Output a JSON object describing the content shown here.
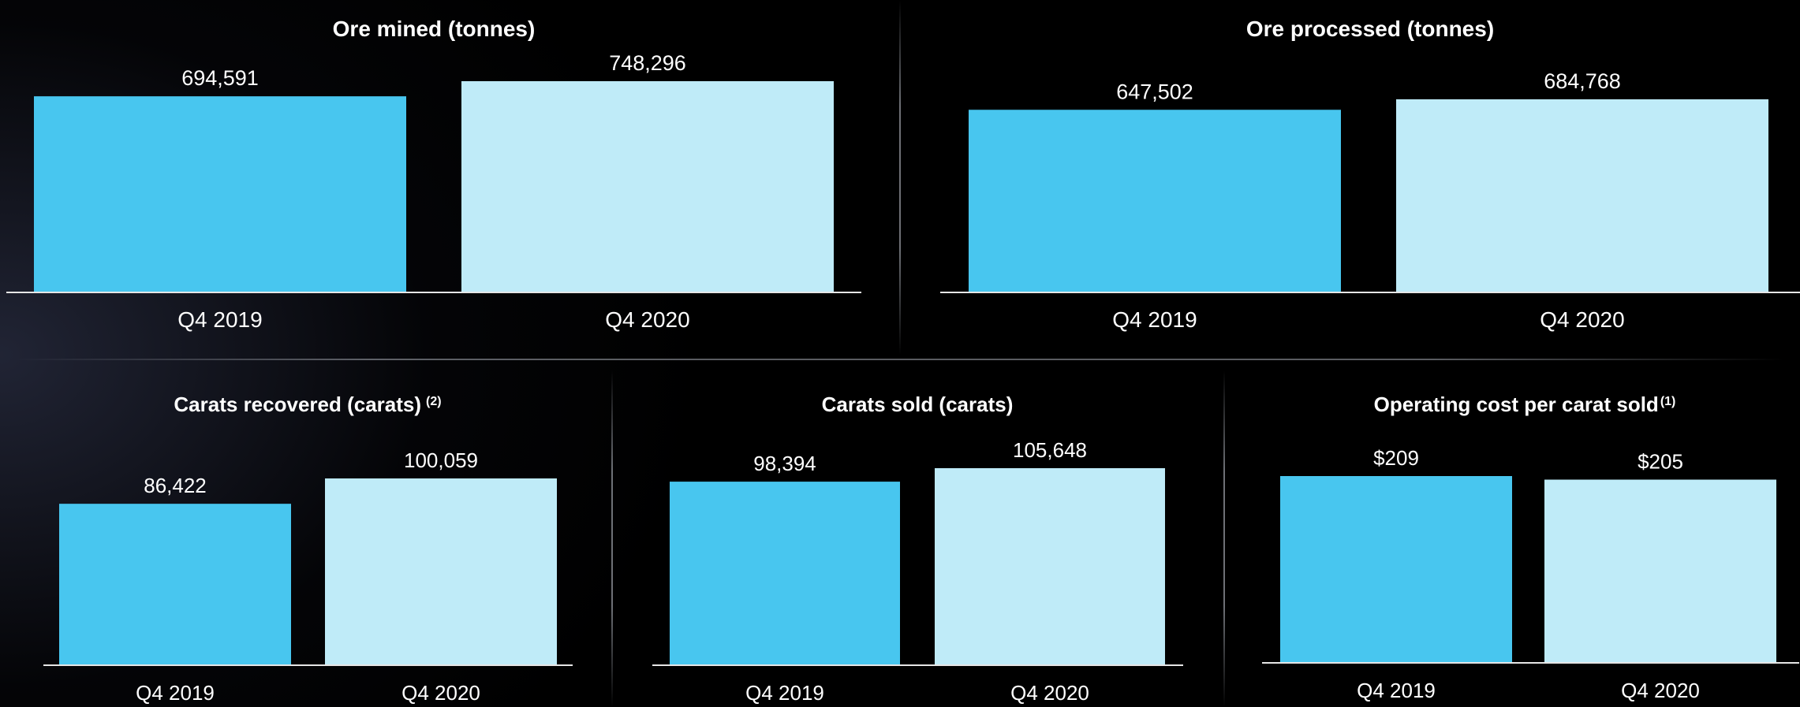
{
  "colors": {
    "q4_2019": "#48C6EF",
    "q4_2020": "#BFEBF8",
    "axis": "#E6E6E6",
    "text": "#FFFFFF"
  },
  "chart_data": [
    {
      "type": "bar",
      "title": "Ore mined (tonnes)",
      "footnote": "",
      "categories": [
        "Q4 2019",
        "Q4 2020"
      ],
      "values": [
        694591,
        748296
      ],
      "value_labels": [
        "694,591",
        "748,296"
      ],
      "ylim": [
        0,
        748296
      ]
    },
    {
      "type": "bar",
      "title": "Ore processed (tonnes)",
      "footnote": "",
      "categories": [
        "Q4 2019",
        "Q4 2020"
      ],
      "values": [
        647502,
        684768
      ],
      "value_labels": [
        "647,502",
        "684,768"
      ],
      "ylim": [
        0,
        684768
      ]
    },
    {
      "type": "bar",
      "title": "Carats recovered (carats)",
      "footnote": "(2)",
      "categories": [
        "Q4 2019",
        "Q4 2020"
      ],
      "values": [
        86422,
        100059
      ],
      "value_labels": [
        "86,422",
        "100,059"
      ],
      "ylim": [
        0,
        100059
      ]
    },
    {
      "type": "bar",
      "title": "Carats sold (carats)",
      "footnote": "",
      "categories": [
        "Q4 2019",
        "Q4 2020"
      ],
      "values": [
        98394,
        105648
      ],
      "value_labels": [
        "98,394",
        "105,648"
      ],
      "ylim": [
        0,
        105648
      ]
    },
    {
      "type": "bar",
      "title": "Operating cost per carat sold",
      "footnote": "(1)",
      "categories": [
        "Q4 2019",
        "Q4 2020"
      ],
      "values": [
        209,
        205
      ],
      "value_labels": [
        "$209",
        "$205"
      ],
      "ylim": [
        0,
        209
      ]
    }
  ]
}
